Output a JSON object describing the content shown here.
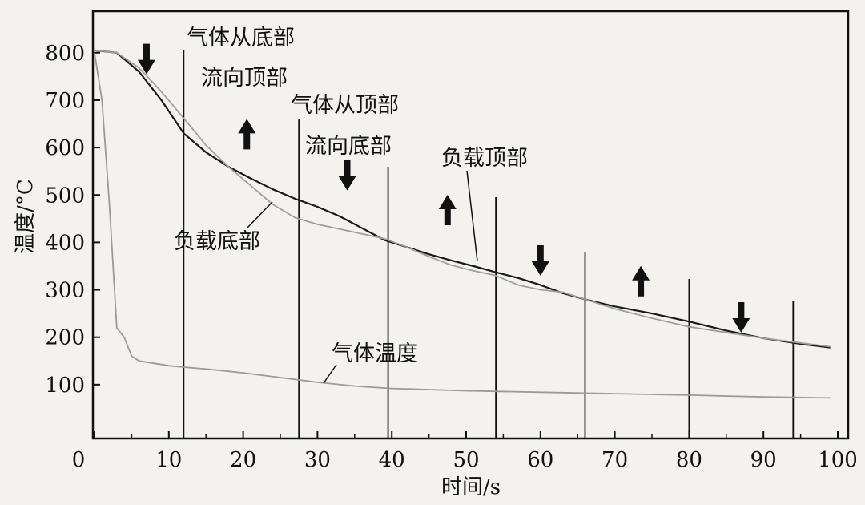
{
  "chart_data": {
    "type": "line",
    "xlabel": "时间/s",
    "ylabel": "温度/°C",
    "xlim": [
      0,
      100
    ],
    "ylim": [
      0,
      850
    ],
    "x_ticks": [
      0,
      10,
      20,
      30,
      40,
      50,
      60,
      70,
      80,
      90,
      100
    ],
    "y_ticks": [
      100,
      200,
      300,
      400,
      500,
      600,
      700,
      800
    ],
    "grid": false,
    "legend": "none",
    "series": [
      {
        "name": "负载顶部",
        "color": "#1a1a1a",
        "x": [
          0,
          3,
          6,
          9,
          12,
          15,
          18,
          21,
          24,
          27,
          30,
          33,
          36,
          39,
          42,
          45,
          48,
          51,
          54,
          57,
          60,
          63,
          66,
          70,
          75,
          80,
          85,
          90,
          95,
          99
        ],
        "y": [
          805,
          800,
          760,
          700,
          630,
          590,
          560,
          535,
          512,
          492,
          475,
          455,
          430,
          405,
          390,
          375,
          362,
          350,
          337,
          325,
          310,
          293,
          280,
          265,
          250,
          233,
          214,
          198,
          186,
          178
        ]
      },
      {
        "name": "负载底部",
        "color": "#9e9e9e",
        "x": [
          0,
          3,
          6,
          9,
          12,
          15,
          18,
          21,
          24,
          27,
          30,
          33,
          36,
          39,
          42,
          45,
          48,
          51,
          54,
          57,
          60,
          63,
          66,
          70,
          75,
          80,
          85,
          90,
          95,
          99
        ],
        "y": [
          805,
          800,
          768,
          718,
          662,
          605,
          560,
          520,
          480,
          452,
          438,
          428,
          418,
          408,
          390,
          370,
          352,
          340,
          330,
          310,
          300,
          295,
          280,
          260,
          240,
          222,
          210,
          198,
          188,
          180
        ]
      },
      {
        "name": "气体温度",
        "color": "#9a9a9a",
        "x": [
          0,
          1,
          2,
          3,
          4,
          5,
          6,
          8,
          10,
          12,
          15,
          20,
          25,
          30,
          35,
          40,
          50,
          60,
          70,
          80,
          90,
          99
        ],
        "y": [
          800,
          700,
          480,
          220,
          200,
          160,
          150,
          145,
          140,
          137,
          133,
          125,
          115,
          105,
          97,
          92,
          87,
          84,
          81,
          78,
          74,
          72
        ]
      }
    ],
    "annotations": {
      "gas_bottom_to_top": [
        "气体从底部",
        "流向顶部"
      ],
      "gas_top_to_bottom": [
        "气体从顶部",
        "流向底部"
      ],
      "load_top": "负载顶部",
      "load_bottom": "负载底部",
      "gas_temp": "气体温度"
    },
    "switch_lines_x": [
      12,
      27.5,
      39.5,
      54,
      66,
      80,
      94
    ],
    "flow_arrows": [
      {
        "x": 7,
        "y": 785,
        "dir": "down"
      },
      {
        "x": 20.5,
        "y": 630,
        "dir": "up"
      },
      {
        "x": 34,
        "y": 540,
        "dir": "down"
      },
      {
        "x": 47.5,
        "y": 470,
        "dir": "up"
      },
      {
        "x": 60,
        "y": 360,
        "dir": "down"
      },
      {
        "x": 73.5,
        "y": 320,
        "dir": "up"
      },
      {
        "x": 87,
        "y": 240,
        "dir": "down"
      }
    ]
  }
}
